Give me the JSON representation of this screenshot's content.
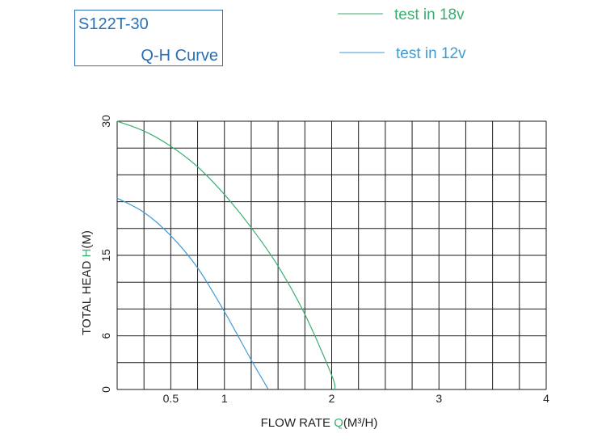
{
  "header": {
    "model": "S122T-30",
    "curve_label": "Q-H Curve"
  },
  "colors": {
    "green": "#3aae6e",
    "blue": "#3f9ad6",
    "title": "#2b6fb5",
    "grid": "#1a1a1a",
    "text": "#222222"
  },
  "chart_data": {
    "type": "line",
    "xlabel_prefix": "FLOW RATE ",
    "xlabel_symbol": "Q",
    "xlabel_unit": "(M³/H)",
    "ylabel_prefix": "TOTAL HEAD ",
    "ylabel_symbol": "H",
    "ylabel_unit": "(M)",
    "x_ticks": [
      {
        "value": 0.5,
        "label": "0.5"
      },
      {
        "value": 1,
        "label": "1"
      },
      {
        "value": 2,
        "label": "2"
      },
      {
        "value": 3,
        "label": "3"
      },
      {
        "value": 4,
        "label": "4"
      }
    ],
    "y_ticks": [
      {
        "value": 0,
        "label": "0"
      },
      {
        "value": 6,
        "label": "6"
      },
      {
        "value": 15,
        "label": "15"
      },
      {
        "value": 30,
        "label": "30"
      }
    ],
    "xlim": [
      0,
      4
    ],
    "ylim": [
      0,
      30
    ],
    "grid": true,
    "legend_position": "top-right",
    "series": [
      {
        "name": "test in 18v",
        "color": "#3aae6e",
        "points": [
          [
            0,
            30
          ],
          [
            0.25,
            28.9
          ],
          [
            0.5,
            27.2
          ],
          [
            0.75,
            24.9
          ],
          [
            1,
            21.8
          ],
          [
            1.25,
            18.1
          ],
          [
            1.5,
            13.8
          ],
          [
            1.75,
            8.4
          ],
          [
            2,
            1.6
          ],
          [
            2.03,
            0
          ]
        ]
      },
      {
        "name": "test in 12v",
        "color": "#3f9ad6",
        "points": [
          [
            0,
            21.4
          ],
          [
            0.25,
            19.8
          ],
          [
            0.5,
            17.2
          ],
          [
            0.75,
            13.6
          ],
          [
            1,
            8.7
          ],
          [
            1.25,
            3.3
          ],
          [
            1.41,
            0
          ]
        ]
      }
    ]
  }
}
